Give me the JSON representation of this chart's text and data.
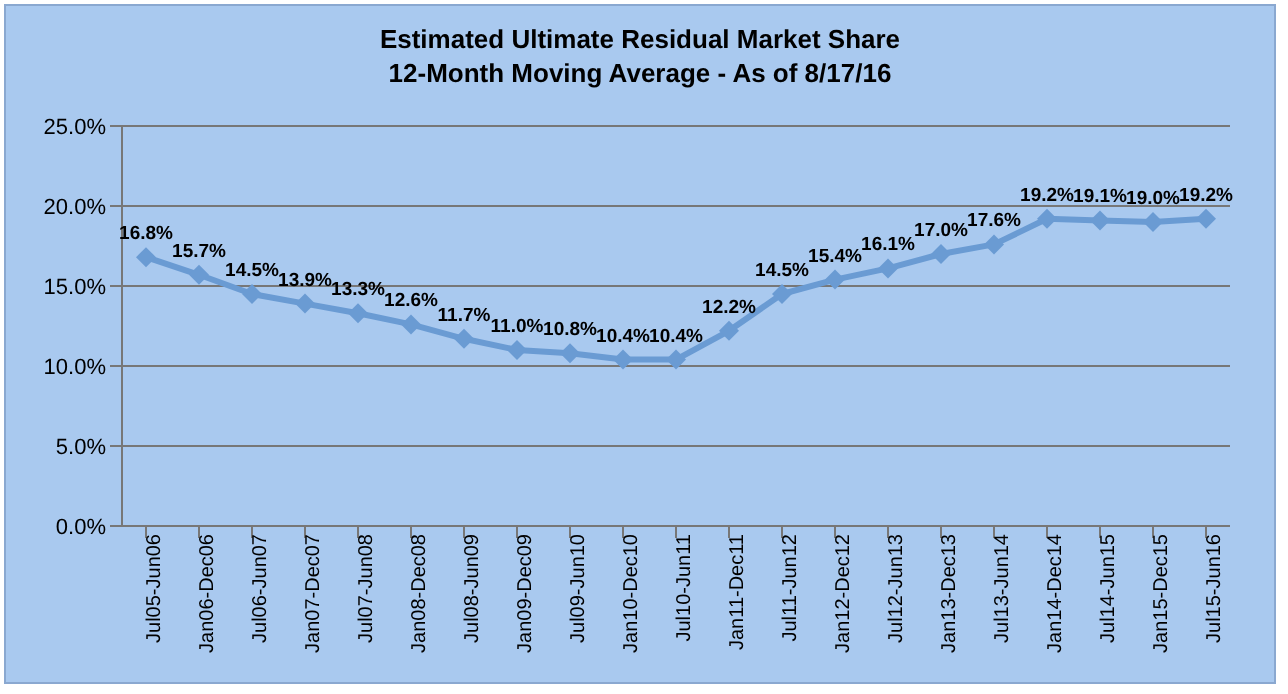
{
  "chart_data": {
    "type": "line",
    "title": "Estimated Ultimate Residual Market Share",
    "subtitle": "12-Month Moving Average - As of 8/17/16",
    "categories": [
      "Jul05-Jun06",
      "Jan06-Dec06",
      "Jul06-Jun07",
      "Jan07-Dec07",
      "Jul07-Jun08",
      "Jan08-Dec08",
      "Jul08-Jun09",
      "Jan09-Dec09",
      "Jul09-Jun10",
      "Jan10-Dec10",
      "Jul10-Jun11",
      "Jan11-Dec11",
      "Jul11-Jun12",
      "Jan12-Dec12",
      "Jul12-Jun13",
      "Jan13-Dec13",
      "Jul13-Jun14",
      "Jan14-Dec14",
      "Jul14-Jun15",
      "Jan15-Dec15",
      "Jul15-Jun16"
    ],
    "series": [
      {
        "color": "#6a9bd3",
        "values": [
          16.8,
          15.7,
          14.5,
          13.9,
          13.3,
          12.6,
          11.7,
          11.0,
          10.8,
          10.4,
          10.4,
          12.2,
          14.5,
          15.4,
          16.1,
          17.0,
          17.6,
          19.2,
          19.1,
          19.0,
          19.2
        ],
        "value_labels": [
          "16.8%",
          "15.7%",
          "14.5%",
          "13.9%",
          "13.3%",
          "12.6%",
          "11.7%",
          "11.0%",
          "10.8%",
          "10.4%",
          "10.4%",
          "12.2%",
          "14.5%",
          "15.4%",
          "16.1%",
          "17.0%",
          "17.6%",
          "19.2%",
          "19.1%",
          "19.0%",
          "19.2%"
        ]
      }
    ],
    "ylim": [
      0,
      25
    ],
    "yticks": [
      {
        "value": 0,
        "label": "0.0%"
      },
      {
        "value": 5,
        "label": "5.0%"
      },
      {
        "value": 10,
        "label": "10.0%"
      },
      {
        "value": 15,
        "label": "15.0%"
      },
      {
        "value": 20,
        "label": "20.0%"
      },
      {
        "value": 25,
        "label": "25.0%"
      }
    ],
    "grid": "y",
    "marker": "diamond",
    "line_style": "solid"
  }
}
